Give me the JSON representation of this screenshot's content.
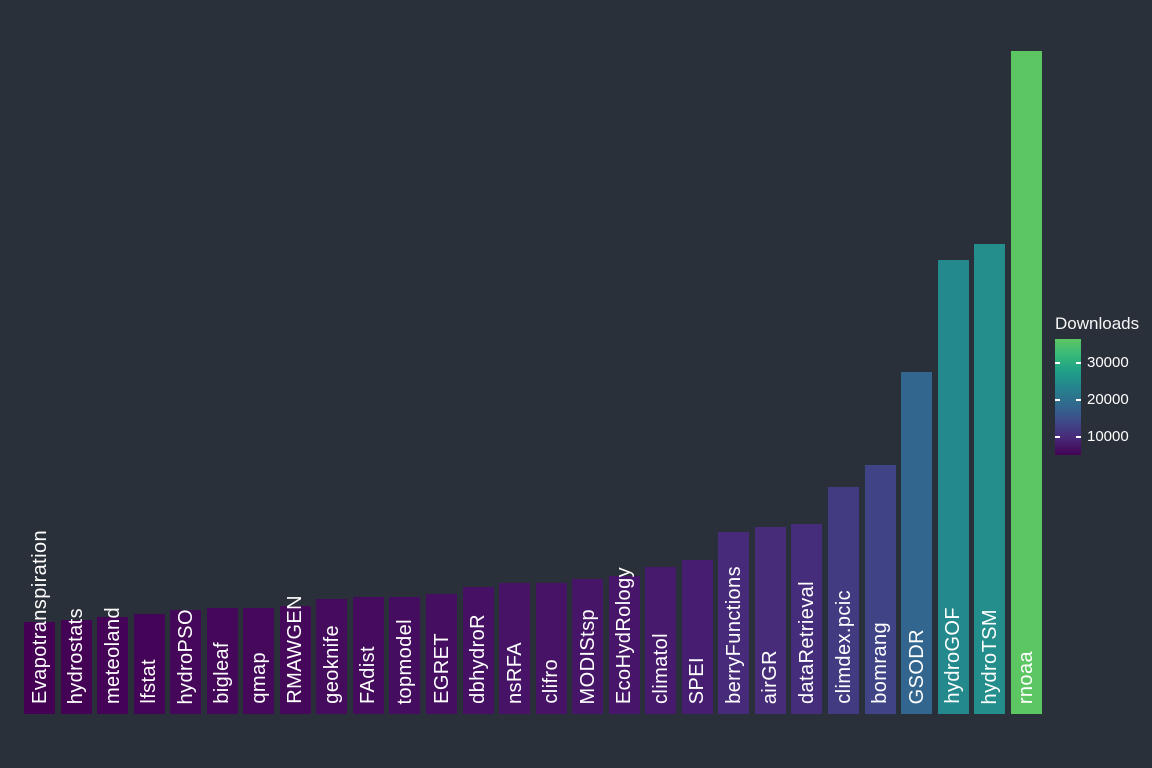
{
  "background_color": "#2a3039",
  "chart_data": {
    "type": "bar",
    "title": "",
    "xlabel": "",
    "ylabel": "",
    "grid": false,
    "axes_shown": false,
    "bar_label_color": "#ffffff",
    "categories": [
      "Evapotranspiration",
      "hydrostats",
      "meteoland",
      "lfstat",
      "hydroPSO",
      "bigleaf",
      "qmap",
      "RMAWGEN",
      "geoknife",
      "FAdist",
      "topmodel",
      "EGRET",
      "dbhydroR",
      "nsRFA",
      "clifro",
      "MODIStsp",
      "EcoHydRology",
      "climatol",
      "SPEI",
      "berryFunctions",
      "airGR",
      "dataRetrieval",
      "climdex.pcic",
      "bomrang",
      "GSODR",
      "hydroGOF",
      "hydroTSM",
      "rnoaa"
    ],
    "values": [
      5050,
      5190,
      5340,
      5500,
      5730,
      5820,
      5860,
      5950,
      6330,
      6420,
      6460,
      6620,
      7010,
      7200,
      7230,
      7450,
      7600,
      8110,
      8480,
      10040,
      10310,
      10460,
      12500,
      13710,
      18810,
      25000,
      25870,
      36500
    ],
    "bar_colors": [
      "#440154",
      "#440255",
      "#440356",
      "#440457",
      "#450759",
      "#45075a",
      "#45085a",
      "#45085b",
      "#450c5e",
      "#450c5e",
      "#450d5f",
      "#460e60",
      "#461164",
      "#461366",
      "#461366",
      "#471568",
      "#47166a",
      "#471a6e",
      "#471d71",
      "#472a79",
      "#472c7a",
      "#462d7b",
      "#423b82",
      "#404486",
      "#32668e",
      "#24898d",
      "#238e8c",
      "#5cc663"
    ],
    "value_domain": [
      5050,
      36500
    ],
    "legend": {
      "title": "Downloads",
      "position": "right",
      "ticks": [
        10000,
        20000,
        30000
      ],
      "tick_color": "#ffffff",
      "gradient_bottom_to_top": [
        "#440154",
        "#482878",
        "#3e4989",
        "#31688e",
        "#26828e",
        "#1f9e89",
        "#35b879",
        "#5cc663"
      ]
    }
  }
}
